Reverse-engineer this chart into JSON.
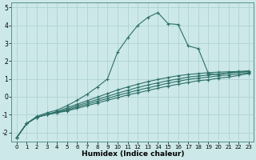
{
  "xlabel": "Humidex (Indice chaleur)",
  "background_color": "#cce8e8",
  "line_color": "#2d7068",
  "grid_color": "#aacfcf",
  "xlim": [
    -0.5,
    23.5
  ],
  "ylim": [
    -2.5,
    5.3
  ],
  "yticks": [
    -2,
    -1,
    0,
    1,
    2,
    3,
    4,
    5
  ],
  "xticks": [
    0,
    1,
    2,
    3,
    4,
    5,
    6,
    7,
    8,
    9,
    10,
    11,
    12,
    13,
    14,
    15,
    16,
    17,
    18,
    19,
    20,
    21,
    22,
    23
  ],
  "lines": [
    {
      "x": [
        0,
        1,
        2,
        3,
        4,
        5,
        6,
        7,
        8,
        9,
        10,
        11,
        12,
        13,
        14,
        15,
        16,
        17,
        18,
        19,
        20,
        21,
        22,
        23
      ],
      "y": [
        -2.3,
        -1.5,
        -1.15,
        -1.0,
        -0.9,
        -0.8,
        -0.65,
        -0.5,
        -0.35,
        -0.2,
        -0.05,
        0.1,
        0.22,
        0.35,
        0.48,
        0.6,
        0.7,
        0.8,
        0.9,
        0.95,
        1.05,
        1.1,
        1.2,
        1.3
      ],
      "marker": true
    },
    {
      "x": [
        0,
        1,
        2,
        3,
        4,
        5,
        6,
        7,
        8,
        9,
        10,
        11,
        12,
        13,
        14,
        15,
        16,
        17,
        18,
        19,
        20,
        21,
        22,
        23
      ],
      "y": [
        -2.3,
        -1.5,
        -1.15,
        -1.0,
        -0.88,
        -0.75,
        -0.58,
        -0.42,
        -0.25,
        -0.1,
        0.08,
        0.22,
        0.37,
        0.5,
        0.63,
        0.76,
        0.87,
        0.97,
        1.05,
        1.1,
        1.18,
        1.23,
        1.28,
        1.33
      ],
      "marker": true
    },
    {
      "x": [
        0,
        1,
        2,
        3,
        4,
        5,
        6,
        7,
        8,
        9,
        10,
        11,
        12,
        13,
        14,
        15,
        16,
        17,
        18,
        19,
        20,
        21,
        22,
        23
      ],
      "y": [
        -2.3,
        -1.5,
        -1.15,
        -1.0,
        -0.87,
        -0.7,
        -0.5,
        -0.33,
        -0.15,
        0.02,
        0.2,
        0.36,
        0.52,
        0.66,
        0.78,
        0.9,
        1.0,
        1.1,
        1.17,
        1.22,
        1.28,
        1.33,
        1.37,
        1.4
      ],
      "marker": true
    },
    {
      "x": [
        0,
        1,
        2,
        3,
        4,
        5,
        6,
        7,
        8,
        9,
        10,
        11,
        12,
        13,
        14,
        15,
        16,
        17,
        18,
        19,
        20,
        21,
        22,
        23
      ],
      "y": [
        -2.3,
        -1.5,
        -1.15,
        -0.98,
        -0.83,
        -0.62,
        -0.42,
        -0.22,
        -0.02,
        0.18,
        0.38,
        0.55,
        0.7,
        0.85,
        0.97,
        1.08,
        1.18,
        1.25,
        1.3,
        1.35,
        1.38,
        1.4,
        1.42,
        1.45
      ],
      "marker": true
    },
    {
      "x": [
        0,
        1,
        2,
        3,
        4,
        5,
        6,
        7,
        8,
        9,
        10,
        11,
        12,
        13,
        14,
        15,
        16,
        17,
        18,
        19,
        20,
        21,
        22,
        23
      ],
      "y": [
        -2.3,
        -1.5,
        -1.1,
        -0.9,
        -0.75,
        -0.5,
        -0.2,
        0.15,
        0.55,
        1.0,
        2.5,
        3.3,
        4.0,
        4.45,
        4.72,
        4.1,
        4.05,
        2.85,
        2.7,
        1.3,
        1.25,
        1.35,
        1.38,
        1.42
      ],
      "marker": true
    }
  ]
}
